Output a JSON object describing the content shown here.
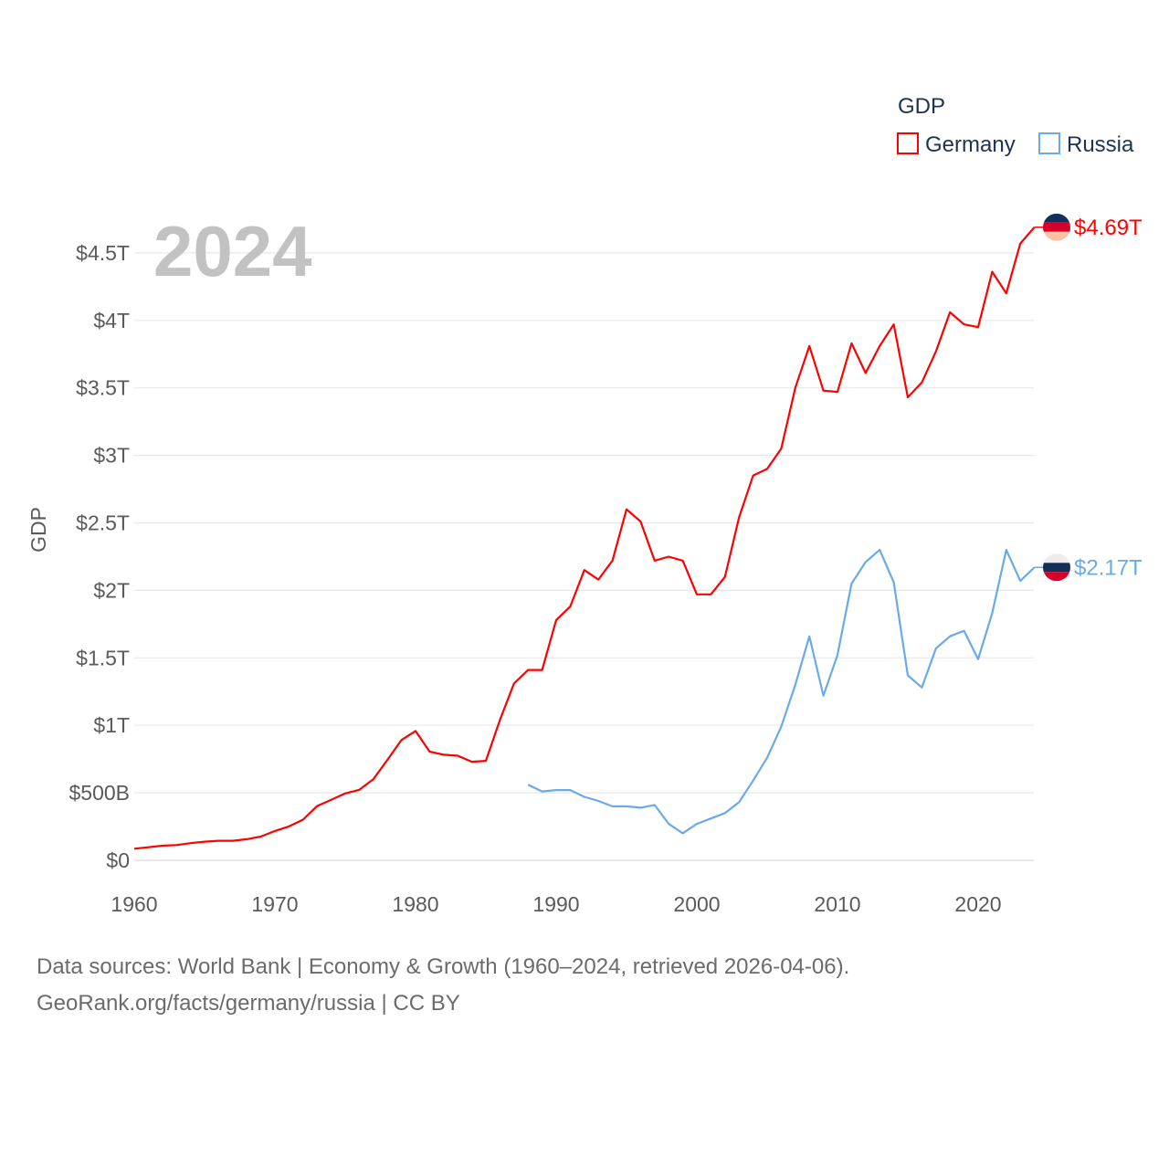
{
  "chart_data": {
    "type": "line",
    "title": "GDP",
    "year_overlay": "2024",
    "ylabel": "GDP",
    "xlabel": "",
    "xlim": [
      1960,
      2024
    ],
    "ylim": [
      0,
      4.75
    ],
    "x_ticks": [
      1960,
      1970,
      1980,
      1990,
      2000,
      2010,
      2020
    ],
    "x_tick_labels": [
      "1960",
      "1970",
      "1980",
      "1990",
      "2000",
      "2010",
      "2020"
    ],
    "y_ticks": [
      0,
      0.5,
      1,
      1.5,
      2,
      2.5,
      3,
      3.5,
      4,
      4.5
    ],
    "y_tick_labels": [
      "$0",
      "$500B",
      "$1T",
      "$1.5T",
      "$2T",
      "$2.5T",
      "$3T",
      "$3.5T",
      "$4T",
      "$4.5T"
    ],
    "y_unit": "trillion USD",
    "grid": true,
    "legend_placement": "top-right",
    "series": [
      {
        "name": "Germany",
        "color": "#ff0000",
        "end_label": "$4.69T",
        "flag_colors": [
          "#12305a",
          "#d6002a",
          "#ffbfa3"
        ],
        "start_year": 1960,
        "values": [
          0.086,
          0.097,
          0.108,
          0.113,
          0.127,
          0.138,
          0.145,
          0.145,
          0.156,
          0.176,
          0.217,
          0.251,
          0.301,
          0.402,
          0.448,
          0.495,
          0.522,
          0.601,
          0.744,
          0.891,
          0.958,
          0.805,
          0.782,
          0.775,
          0.73,
          0.737,
          1.04,
          1.31,
          1.41,
          1.41,
          1.78,
          1.88,
          2.15,
          2.08,
          2.22,
          2.6,
          2.51,
          2.22,
          2.25,
          2.22,
          1.97,
          1.97,
          2.1,
          2.54,
          2.85,
          2.9,
          3.05,
          3.5,
          3.81,
          3.48,
          3.47,
          3.83,
          3.61,
          3.81,
          3.97,
          3.43,
          3.54,
          3.77,
          4.06,
          3.97,
          3.95,
          4.36,
          4.2,
          4.57,
          4.69
        ]
      },
      {
        "name": "Russia",
        "color": "#6aaae8",
        "end_label": "$2.17T",
        "flag_colors": [
          "#ececec",
          "#12305a",
          "#d6002a"
        ],
        "start_year": 1988,
        "values": [
          0.56,
          0.51,
          0.52,
          0.52,
          0.47,
          0.44,
          0.4,
          0.4,
          0.39,
          0.41,
          0.27,
          0.2,
          0.27,
          0.31,
          0.35,
          0.43,
          0.59,
          0.76,
          0.99,
          1.3,
          1.66,
          1.22,
          1.52,
          2.05,
          2.21,
          2.3,
          2.06,
          1.37,
          1.28,
          1.57,
          1.66,
          1.7,
          1.49,
          1.83,
          2.3,
          2.07,
          2.17
        ]
      }
    ]
  },
  "footer": {
    "line1": "Data sources: World Bank | Economy & Growth (1960–2024, retrieved 2026-04-06).",
    "line2": "GeoRank.org/facts/germany/russia | CC BY"
  }
}
